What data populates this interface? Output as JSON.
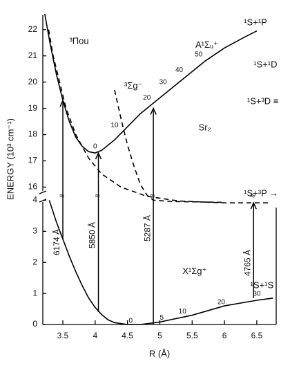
{
  "chart_data": [
    {
      "type": "line",
      "ylabel": "ENERGY (10³ cm⁻¹)",
      "xlim": [
        3.19,
        6.8
      ],
      "ylim": [
        15.3,
        22.6
      ],
      "yticks": [
        16,
        17,
        18,
        19,
        20,
        21,
        22
      ],
      "series": [
        {
          "name": "A¹Σᵤ⁺",
          "color": "#000000",
          "dash": false,
          "x": [
            3.22,
            3.3,
            3.4,
            3.5,
            3.6,
            3.7,
            3.8,
            3.9,
            4.0,
            4.1,
            4.3,
            4.5,
            4.7,
            4.9,
            5.1,
            5.3,
            5.5,
            5.7,
            6.0,
            6.3,
            6.5
          ],
          "values": [
            22.6,
            21.5,
            20.3,
            19.3,
            18.5,
            17.9,
            17.55,
            17.35,
            17.3,
            17.4,
            17.8,
            18.3,
            18.8,
            19.2,
            19.6,
            20.0,
            20.4,
            20.8,
            21.3,
            21.7,
            21.95
          ]
        },
        {
          "name": "³Πou",
          "color": "#000000",
          "dash": true,
          "x": [
            3.28,
            3.35,
            3.45,
            3.55,
            3.7,
            3.9,
            4.1,
            4.4,
            4.8,
            5.3,
            6.0,
            6.7
          ],
          "values": [
            22.0,
            21.0,
            20.0,
            19.0,
            18.0,
            17.1,
            16.5,
            16.0,
            15.65,
            15.47,
            15.4,
            15.4
          ]
        },
        {
          "name": "³Σg⁻",
          "color": "#000000",
          "dash": true,
          "x": [
            4.3,
            4.4,
            4.5,
            4.6,
            4.7,
            4.8,
            4.9,
            5.2,
            6.0
          ],
          "values": [
            19.7,
            18.6,
            17.6,
            16.8,
            16.1,
            15.7,
            15.5,
            15.45,
            15.42
          ]
        }
      ],
      "vibrational_labels": [
        0,
        10,
        20,
        30,
        40,
        50
      ],
      "annotations": [
        "¹S+¹P",
        "¹S+¹D",
        "¹S+³D ≡",
        "¹S+³P →",
        "Sr₂"
      ]
    },
    {
      "type": "line",
      "xlabel": "R (Å)",
      "xlim": [
        3.19,
        6.8
      ],
      "ylim": [
        0,
        4.1
      ],
      "yticks": [
        0,
        1,
        2,
        3,
        4
      ],
      "xticks": [
        3.5,
        4.0,
        4.5,
        5.0,
        5.5,
        6.0,
        6.5
      ],
      "series": [
        {
          "name": "X¹Σg⁺",
          "color": "#000000",
          "dash": false,
          "x": [
            3.29,
            3.4,
            3.5,
            3.6,
            3.7,
            3.8,
            3.9,
            4.0,
            4.1,
            4.2,
            4.3,
            4.5,
            4.7,
            5.0,
            5.5,
            6.0,
            6.5,
            6.75
          ],
          "values": [
            4.0,
            3.3,
            2.75,
            2.2,
            1.7,
            1.25,
            0.85,
            0.55,
            0.32,
            0.15,
            0.06,
            0.0,
            0.0,
            0.08,
            0.3,
            0.6,
            0.78,
            0.85
          ]
        }
      ],
      "vibrational_labels": [
        0,
        5,
        10,
        20,
        30
      ],
      "annotations": [
        "¹S+¹S"
      ]
    }
  ],
  "transitions": [
    {
      "label": "6174 Å",
      "x": 3.5,
      "from": 2.75,
      "to": 19.3
    },
    {
      "label": "5850 Å",
      "x": 4.05,
      "from": 0.4,
      "to": 17.3
    },
    {
      "label": "5287 Å",
      "x": 4.9,
      "from": 0.0,
      "to": 19.0
    },
    {
      "label": "4765 Å",
      "x": 6.45,
      "from": 0.85,
      "to": 15.4
    }
  ]
}
